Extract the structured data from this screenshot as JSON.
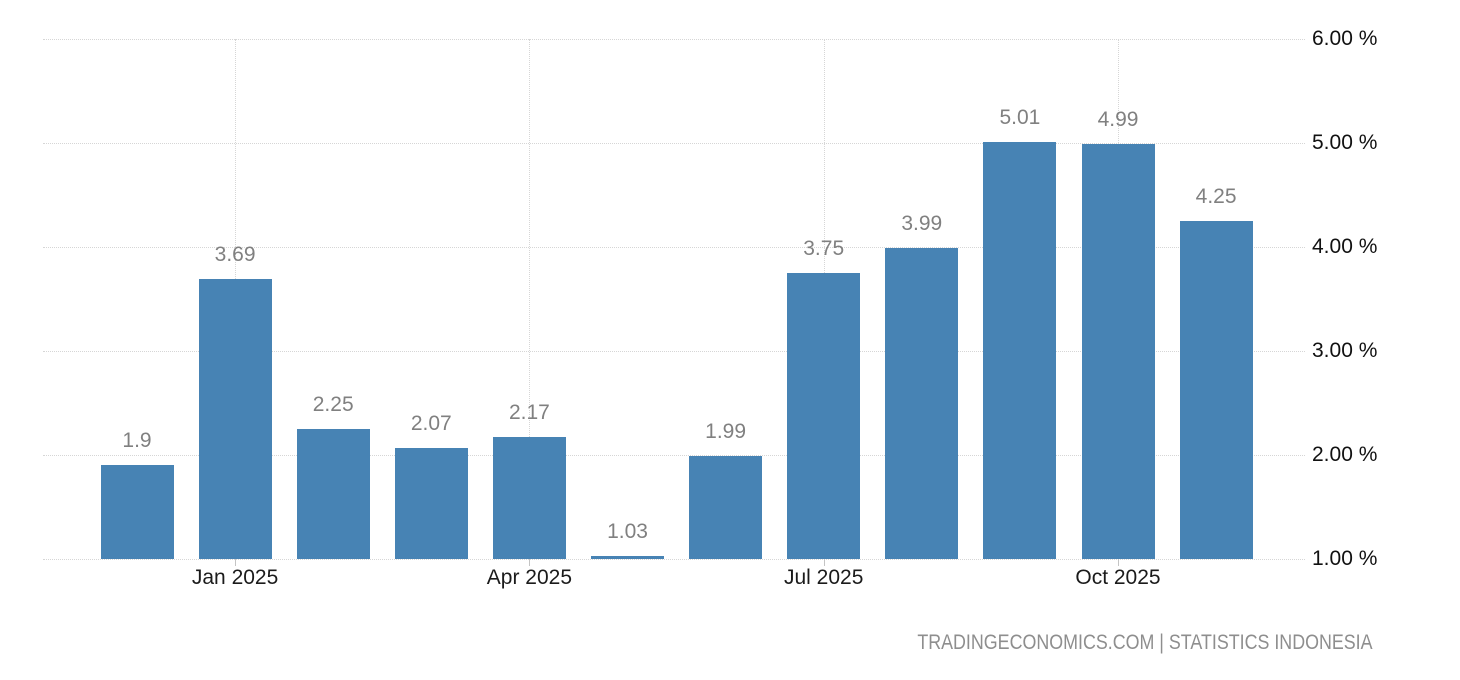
{
  "chart_data": {
    "type": "bar",
    "values": [
      1.9,
      3.69,
      2.25,
      2.07,
      2.17,
      1.03,
      1.99,
      3.75,
      3.99,
      5.01,
      4.99,
      4.25
    ],
    "bar_value_labels": [
      "1.9",
      "3.69",
      "2.25",
      "2.07",
      "2.17",
      "1.03",
      "1.99",
      "3.75",
      "3.99",
      "5.01",
      "4.99",
      "4.25"
    ],
    "x_ticks": [
      {
        "bar_index": 1,
        "label": "Jan 2025"
      },
      {
        "bar_index": 4,
        "label": "Apr 2025"
      },
      {
        "bar_index": 7,
        "label": "Jul 2025"
      },
      {
        "bar_index": 10,
        "label": "Oct 2025"
      }
    ],
    "y_axis": {
      "min": 1,
      "max": 6,
      "tick_step": 1,
      "tick_labels": [
        "1.00 %",
        "2.00 %",
        "3.00 %",
        "4.00 %",
        "5.00 %",
        "6.00 %"
      ],
      "position": "right"
    },
    "grid": {
      "horizontal": true,
      "vertical_at_x_ticks": true,
      "style": "dotted"
    },
    "legend": null,
    "title": "",
    "attribution": "TRADINGECONOMICS.COM | STATISTICS INDONESIA",
    "colors": {
      "bar": "#4783b4",
      "grid": "#d6d6d6",
      "value_label": "#808080",
      "x_axis_label": "#1b1b1b",
      "y_axis_label": "#111111",
      "attribution": "#8e8e8e",
      "axis_tick": "#c4c4c4",
      "background": "#ffffff"
    }
  }
}
